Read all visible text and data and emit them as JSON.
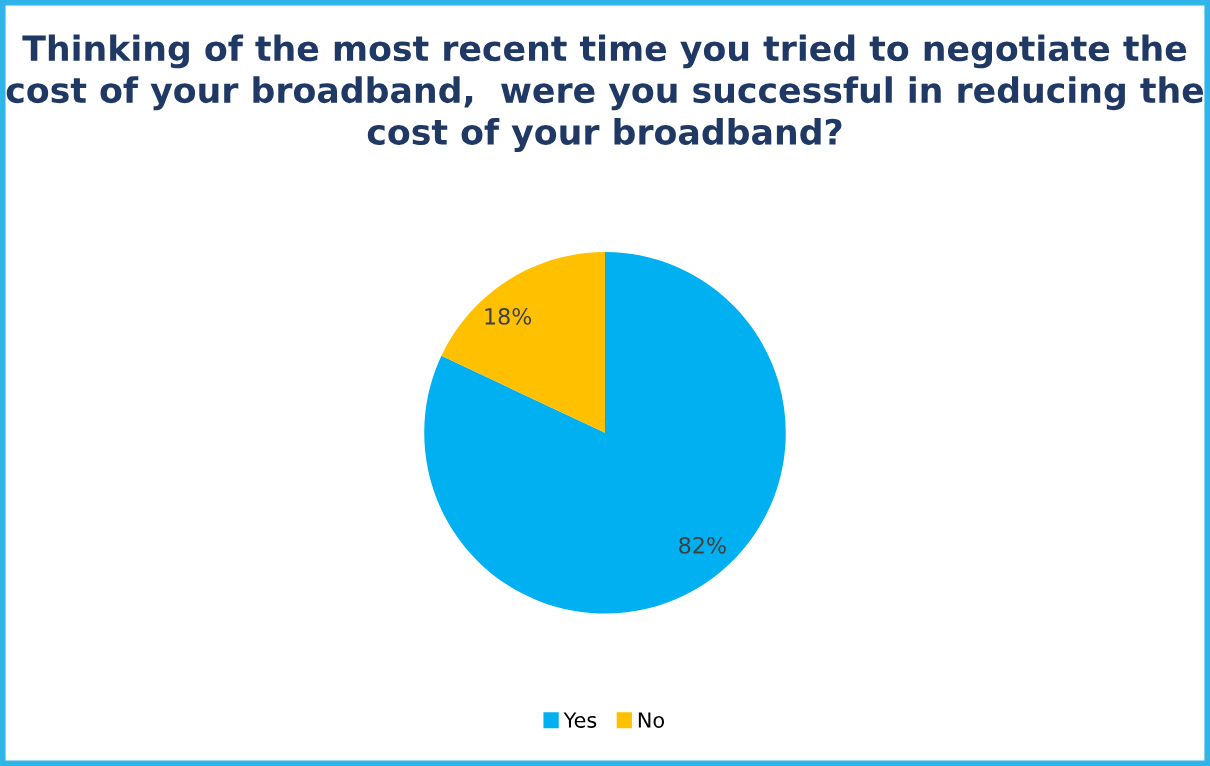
{
  "chart_data": {
    "type": "pie",
    "title": "Thinking of the most recent time you tried to negotiate the cost of your broadband,  were you successful in reducing the cost of your broadband?",
    "categories": [
      "Yes",
      "No"
    ],
    "values": [
      82,
      18
    ],
    "colors": [
      "#00b0f0",
      "#ffc000"
    ],
    "value_labels": [
      "82%",
      "18%"
    ],
    "legend": "bottom"
  }
}
